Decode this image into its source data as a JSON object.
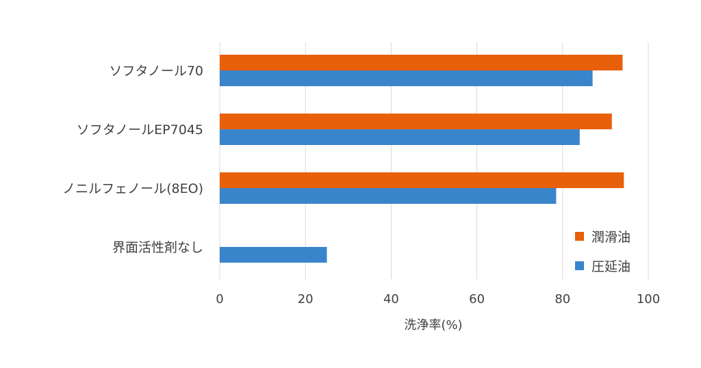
{
  "chart_data": {
    "type": "bar",
    "orientation": "horizontal",
    "categories": [
      "ソフタノール70",
      "ソフタノールEP7045",
      "ノニルフェノール(8EO)",
      "界面活性剤なし"
    ],
    "series": [
      {
        "name": "潤滑油",
        "color": "#e8600a",
        "values": [
          94,
          91.5,
          94.3,
          null
        ]
      },
      {
        "name": "圧延油",
        "color": "#3a84cc",
        "values": [
          87,
          84,
          78.5,
          25
        ]
      }
    ],
    "xlabel": "洗浄率(%)",
    "ylabel": "",
    "xlim": [
      0,
      100
    ],
    "xticks": [
      "0",
      "20",
      "40",
      "60",
      "80",
      "100"
    ],
    "grid": true,
    "legend": "right"
  }
}
